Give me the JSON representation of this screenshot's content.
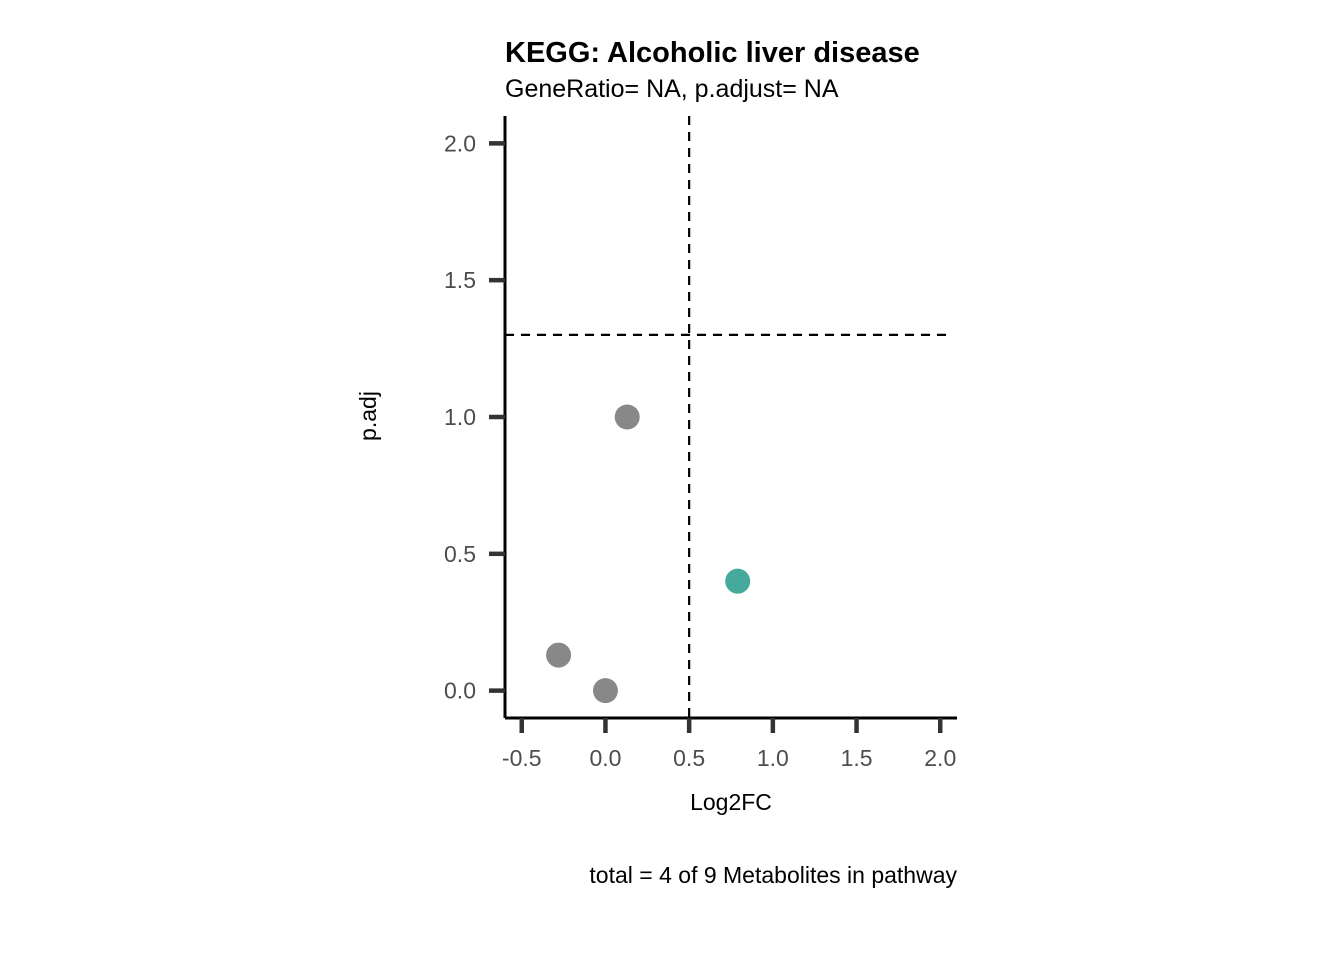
{
  "chart_data": {
    "type": "scatter",
    "title": "KEGG: Alcoholic liver disease",
    "subtitle": "GeneRatio= NA, p.adjust= NA",
    "xlabel": "Log2FC",
    "ylabel": "p.adj",
    "caption": "total = 4 of 9 Metabolites in pathway",
    "xlim": [
      -0.6,
      2.1
    ],
    "ylim": [
      -0.1,
      2.1
    ],
    "x_ticks": [
      -0.5,
      0.0,
      0.5,
      1.0,
      1.5,
      2.0
    ],
    "x_tick_labels": [
      "-0.5",
      "0.0",
      "0.5",
      "1.0",
      "1.5",
      "2.0"
    ],
    "y_ticks": [
      0.0,
      0.5,
      1.0,
      1.5,
      2.0
    ],
    "y_tick_labels": [
      "0.0",
      "0.5",
      "1.0",
      "1.5",
      "2.0"
    ],
    "grid": false,
    "reference_lines": {
      "vertical_x": 0.5,
      "horizontal_y": 1.3,
      "style": "dashed"
    },
    "points": [
      {
        "x": 0.13,
        "y": 1.0,
        "color": "#888888"
      },
      {
        "x": 0.79,
        "y": 0.4,
        "color": "#45a99b"
      },
      {
        "x": -0.28,
        "y": 0.13,
        "color": "#888888"
      },
      {
        "x": 0.0,
        "y": 0.0,
        "color": "#888888"
      }
    ]
  }
}
